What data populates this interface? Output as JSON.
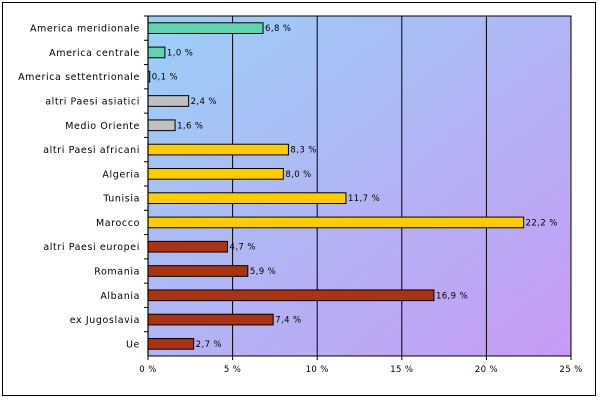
{
  "chart_data": {
    "type": "bar",
    "orientation": "horizontal",
    "categories": [
      "America meridionale",
      "America centrale",
      "America settentrionale",
      "altri Paesi asiatici",
      "Medio Oriente",
      "altri Paesi africani",
      "Algeria",
      "Tunisia",
      "Marocco",
      "altri Paesi europei",
      "Romania",
      "Albania",
      "ex Jugoslavia",
      "Ue"
    ],
    "values": [
      6.8,
      1.0,
      0.1,
      2.4,
      1.6,
      8.3,
      8.0,
      11.7,
      22.2,
      4.7,
      5.9,
      16.9,
      7.4,
      2.7
    ],
    "value_labels": [
      "6,8 %",
      "1,0 %",
      "0,1 %",
      "2,4 %",
      "1,6 %",
      "8,3 %",
      "8,0 %",
      "11,7 %",
      "22,2 %",
      "4,7 %",
      "5,9 %",
      "16,9 %",
      "7,4 %",
      "2,7 %"
    ],
    "bar_colors": [
      "#5fd4b0",
      "#5fd4b0",
      "#5fd4b0",
      "#c0c0c0",
      "#c0c0c0",
      "#ffcc00",
      "#ffcc00",
      "#ffcc00",
      "#ffcc00",
      "#aa3311",
      "#aa3311",
      "#aa3311",
      "#aa3311",
      "#aa3311"
    ],
    "xticks": [
      0,
      5,
      10,
      15,
      20,
      25
    ],
    "xtick_labels": [
      "0 %",
      "5 %",
      "10 %",
      "15 %",
      "20 %",
      "25 %"
    ],
    "xlim": [
      0,
      25
    ],
    "grid": "vertical",
    "legend": "none",
    "background_gradient": [
      "#9ad0f5",
      "#c79af5"
    ],
    "title": "",
    "xlabel": "",
    "ylabel": ""
  }
}
